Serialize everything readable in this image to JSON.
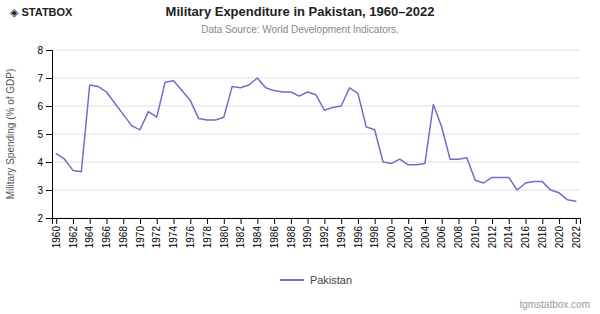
{
  "chart_data": {
    "type": "line",
    "title": "Military Expenditure in Pakistan, 1960–2022",
    "subtitle": "Data Source: World Development Indicators.",
    "ylabel": "Military Spending (% of GDP)",
    "annotations": [
      "◈ STAT",
      "BOX",
      "tgmstatbox.com"
    ],
    "x": [
      1960,
      1961,
      1962,
      1963,
      1964,
      1965,
      1966,
      1967,
      1968,
      1969,
      1970,
      1971,
      1972,
      1973,
      1974,
      1975,
      1976,
      1977,
      1978,
      1979,
      1980,
      1981,
      1982,
      1983,
      1984,
      1985,
      1986,
      1987,
      1988,
      1989,
      1990,
      1991,
      1992,
      1993,
      1994,
      1995,
      1996,
      1997,
      1998,
      1999,
      2000,
      2001,
      2002,
      2003,
      2004,
      2005,
      2006,
      2007,
      2008,
      2009,
      2010,
      2011,
      2012,
      2013,
      2014,
      2015,
      2016,
      2017,
      2018,
      2019,
      2020,
      2021,
      2022
    ],
    "series": [
      {
        "name": "Pakistan",
        "color": "#7b68c8",
        "values": [
          4.3,
          4.1,
          3.7,
          3.65,
          6.75,
          6.7,
          6.5,
          6.1,
          5.7,
          5.3,
          5.15,
          5.8,
          5.6,
          6.85,
          6.9,
          6.55,
          6.2,
          5.55,
          5.5,
          5.5,
          5.6,
          6.7,
          6.65,
          6.75,
          7.0,
          6.65,
          6.55,
          6.5,
          6.5,
          6.35,
          6.5,
          6.4,
          5.85,
          5.95,
          6.0,
          6.65,
          6.45,
          5.25,
          5.15,
          4.0,
          3.95,
          4.1,
          3.9,
          3.9,
          3.95,
          6.05,
          5.25,
          4.1,
          4.1,
          4.15,
          3.35,
          3.25,
          3.45,
          3.45,
          3.45,
          3.0,
          3.25,
          3.3,
          3.3,
          3.0,
          2.9,
          2.65,
          2.6
        ]
      }
    ],
    "xlim": [
      1959.5,
      2022.5
    ],
    "xticks": [
      1960,
      1962,
      1964,
      1966,
      1968,
      1970,
      1972,
      1974,
      1976,
      1978,
      1980,
      1982,
      1984,
      1986,
      1988,
      1990,
      1992,
      1994,
      1996,
      1998,
      2000,
      2002,
      2004,
      2006,
      2008,
      2010,
      2012,
      2014,
      2016,
      2018,
      2020,
      2022
    ],
    "ylim": [
      2,
      8
    ],
    "yticks": [
      2,
      3,
      4,
      5,
      6,
      7,
      8
    ],
    "grid": true,
    "legend": "bottom"
  }
}
